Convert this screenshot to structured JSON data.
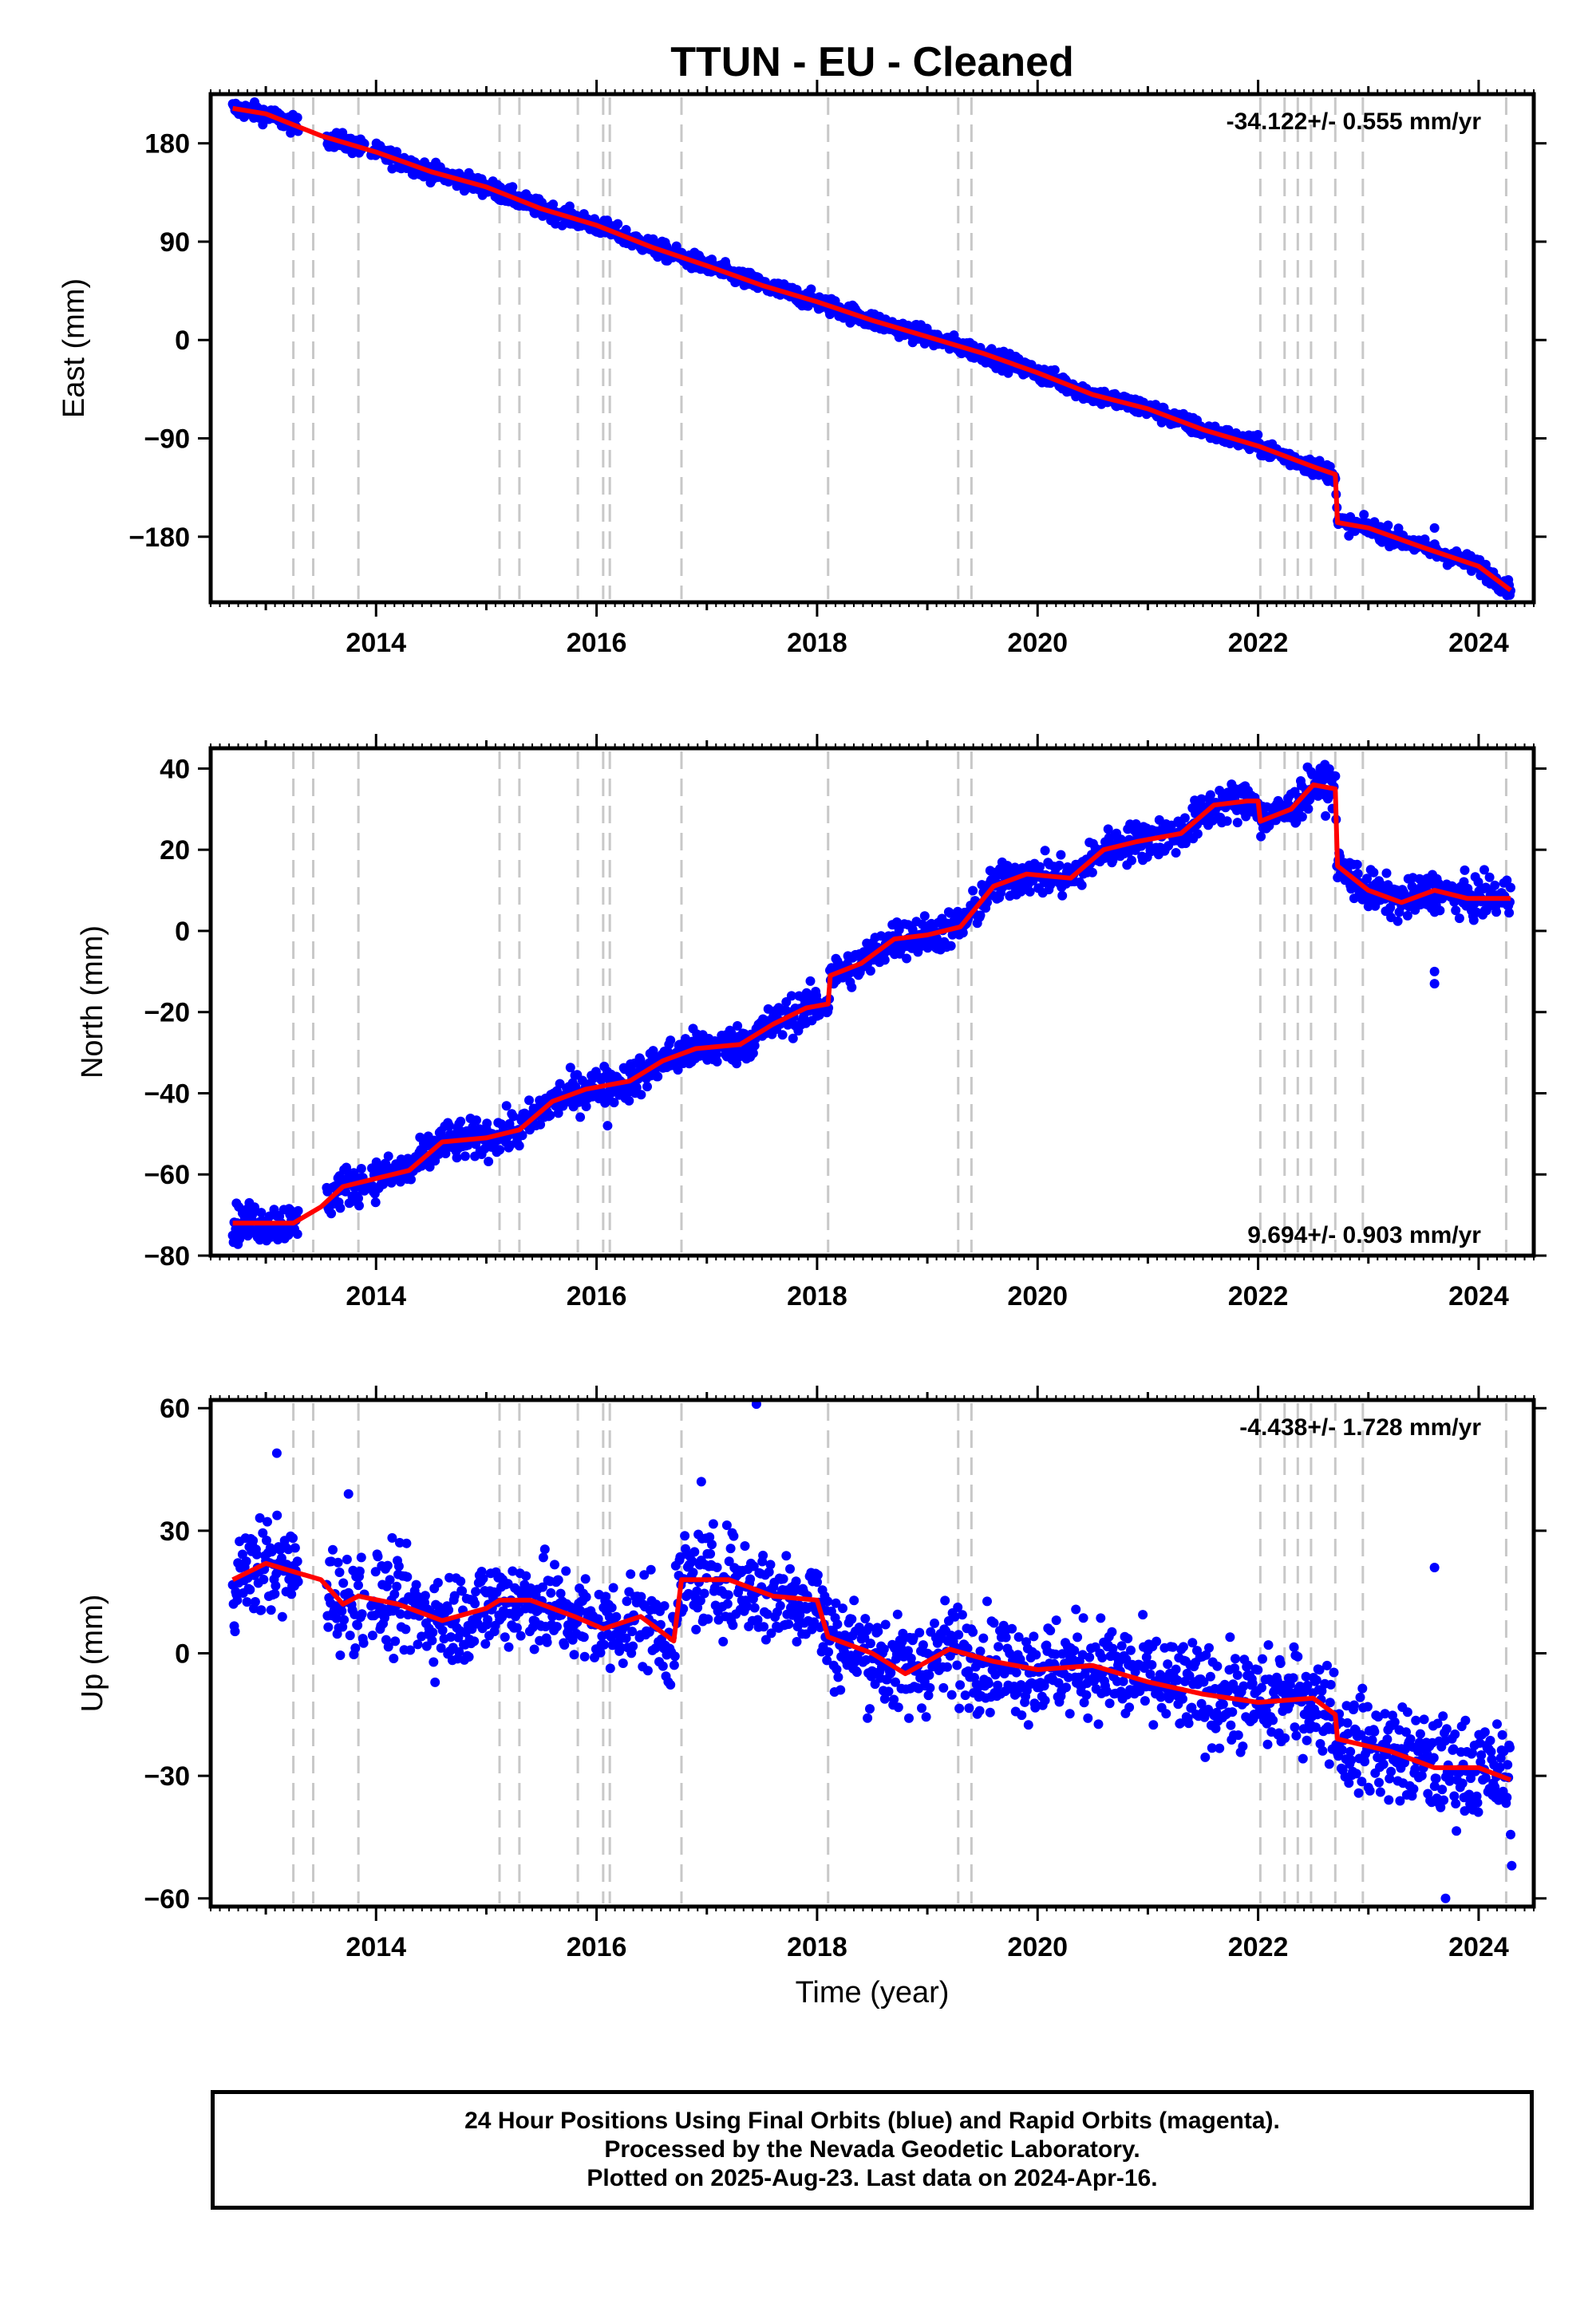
{
  "title": "TTUN  - EU - Cleaned",
  "xlabel": "Time (year)",
  "colors": {
    "final_orbits": "#0000ff",
    "model": "#ff0000",
    "steps": "#c8c8c8",
    "frame": "#000000"
  },
  "footer": {
    "line1": "24 Hour Positions Using Final Orbits (blue) and Rapid Orbits (magenta).",
    "line2": "Processed by the Nevada Geodetic Laboratory.",
    "line3": "Plotted on 2025-Aug-23. Last data on 2024-Apr-16."
  },
  "chart_data": {
    "type": "scatter",
    "x_ticks": [
      "2014",
      "2016",
      "2018",
      "2020",
      "2022",
      "2024"
    ],
    "xlim": [
      2012.5,
      2024.5
    ],
    "data_start": 2012.7,
    "data_end": 2024.29,
    "step_epochs": [
      2013.25,
      2013.43,
      2013.84,
      2015.12,
      2015.3,
      2015.83,
      2016.06,
      2016.12,
      2016.77,
      2018.1,
      2019.28,
      2019.4,
      2022.02,
      2022.24,
      2022.36,
      2022.48,
      2022.7,
      2022.95,
      2024.25
    ],
    "panels": [
      {
        "name": "East",
        "ylabel": "East (mm)",
        "rate_label": "-34.122+/- 0.555 mm/yr",
        "rate_position": "top-right",
        "ylim": [
          -240,
          225
        ],
        "y_ticks": [
          "180",
          "90",
          "0",
          "−90",
          "−180"
        ],
        "y_tick_values": [
          180,
          90,
          0,
          -90,
          -180
        ],
        "model": [
          [
            2012.7,
            212
          ],
          [
            2013.0,
            207
          ],
          [
            2013.25,
            197
          ],
          [
            2013.5,
            187
          ],
          [
            2014.0,
            172
          ],
          [
            2014.5,
            154
          ],
          [
            2015.0,
            140
          ],
          [
            2015.5,
            120
          ],
          [
            2016.0,
            105
          ],
          [
            2016.5,
            85
          ],
          [
            2017.0,
            68
          ],
          [
            2017.5,
            50
          ],
          [
            2018.0,
            35
          ],
          [
            2018.5,
            18
          ],
          [
            2019.0,
            3
          ],
          [
            2019.5,
            -12
          ],
          [
            2020.0,
            -30
          ],
          [
            2020.5,
            -50
          ],
          [
            2021.0,
            -63
          ],
          [
            2021.5,
            -82
          ],
          [
            2022.0,
            -97
          ],
          [
            2022.5,
            -116
          ],
          [
            2022.7,
            -123
          ],
          [
            2022.72,
            -167
          ],
          [
            2023.0,
            -172
          ],
          [
            2023.5,
            -190
          ],
          [
            2024.0,
            -207
          ],
          [
            2024.29,
            -229
          ]
        ],
        "scatter": {
          "noise_mm": 4,
          "outliers": [
            [
              2023.6,
              -172
            ]
          ]
        }
      },
      {
        "name": "North",
        "ylabel": "North (mm)",
        "rate_label": "9.694+/- 0.903 mm/yr",
        "rate_position": "bottom-right",
        "ylim": [
          -80,
          45
        ],
        "y_ticks": [
          "40",
          "20",
          "0",
          "−20",
          "−40",
          "−60",
          "−80"
        ],
        "y_tick_values": [
          40,
          20,
          0,
          -20,
          -40,
          -60,
          -80
        ],
        "model": [
          [
            2012.7,
            -72
          ],
          [
            2013.25,
            -72
          ],
          [
            2013.5,
            -68
          ],
          [
            2013.7,
            -63
          ],
          [
            2014.0,
            -61
          ],
          [
            2014.3,
            -59
          ],
          [
            2014.6,
            -52
          ],
          [
            2015.0,
            -51
          ],
          [
            2015.3,
            -49
          ],
          [
            2015.6,
            -42
          ],
          [
            2015.9,
            -39
          ],
          [
            2016.3,
            -37
          ],
          [
            2016.6,
            -32
          ],
          [
            2016.9,
            -29
          ],
          [
            2017.3,
            -28
          ],
          [
            2017.6,
            -23
          ],
          [
            2017.9,
            -19
          ],
          [
            2018.1,
            -18
          ],
          [
            2018.12,
            -11
          ],
          [
            2018.4,
            -8
          ],
          [
            2018.7,
            -2
          ],
          [
            2019.0,
            -1
          ],
          [
            2019.3,
            1
          ],
          [
            2019.6,
            11
          ],
          [
            2019.9,
            14
          ],
          [
            2020.3,
            13
          ],
          [
            2020.6,
            20
          ],
          [
            2020.9,
            22
          ],
          [
            2021.3,
            24
          ],
          [
            2021.6,
            31
          ],
          [
            2021.9,
            32
          ],
          [
            2022.0,
            32
          ],
          [
            2022.02,
            27
          ],
          [
            2022.3,
            30
          ],
          [
            2022.5,
            36
          ],
          [
            2022.7,
            35
          ],
          [
            2022.72,
            16
          ],
          [
            2023.0,
            10
          ],
          [
            2023.3,
            7
          ],
          [
            2023.6,
            10
          ],
          [
            2023.9,
            8
          ],
          [
            2024.29,
            8
          ]
        ],
        "scatter": {
          "noise_mm": 2.4,
          "outliers": [
            [
              2023.6,
              -13
            ],
            [
              2023.6,
              -10
            ],
            [
              2016.1,
              -48
            ]
          ]
        }
      },
      {
        "name": "Up",
        "ylabel": "Up (mm)",
        "rate_label": "-4.438+/- 1.728 mm/yr",
        "rate_position": "top-right",
        "ylim": [
          -62,
          62
        ],
        "y_ticks": [
          "60",
          "30",
          "0",
          "−30",
          "−60"
        ],
        "y_tick_values": [
          60,
          30,
          0,
          -30,
          -60
        ],
        "model": [
          [
            2012.7,
            18
          ],
          [
            2013.0,
            22
          ],
          [
            2013.25,
            20
          ],
          [
            2013.5,
            18
          ],
          [
            2013.7,
            12
          ],
          [
            2013.84,
            14
          ],
          [
            2014.2,
            12
          ],
          [
            2014.6,
            8
          ],
          [
            2015.0,
            11
          ],
          [
            2015.12,
            13
          ],
          [
            2015.4,
            13
          ],
          [
            2015.8,
            9
          ],
          [
            2016.06,
            6
          ],
          [
            2016.4,
            9
          ],
          [
            2016.7,
            3
          ],
          [
            2016.77,
            18
          ],
          [
            2017.2,
            18
          ],
          [
            2017.6,
            14
          ],
          [
            2018.0,
            13
          ],
          [
            2018.1,
            4
          ],
          [
            2018.5,
            0
          ],
          [
            2018.8,
            -5
          ],
          [
            2019.2,
            1
          ],
          [
            2019.6,
            -2
          ],
          [
            2020.0,
            -4
          ],
          [
            2020.5,
            -3
          ],
          [
            2021.0,
            -7
          ],
          [
            2021.5,
            -10
          ],
          [
            2022.0,
            -12
          ],
          [
            2022.5,
            -11
          ],
          [
            2022.7,
            -15
          ],
          [
            2022.72,
            -21
          ],
          [
            2023.2,
            -24
          ],
          [
            2023.6,
            -28
          ],
          [
            2024.0,
            -28
          ],
          [
            2024.29,
            -31
          ]
        ],
        "scatter": {
          "noise_mm": 6,
          "outliers": [
            [
              2017.45,
              61
            ],
            [
              2013.1,
              49
            ],
            [
              2016.95,
              42
            ],
            [
              2023.6,
              21
            ],
            [
              2023.7,
              -60
            ],
            [
              2024.3,
              -52
            ],
            [
              2013.75,
              39
            ]
          ]
        }
      }
    ]
  }
}
